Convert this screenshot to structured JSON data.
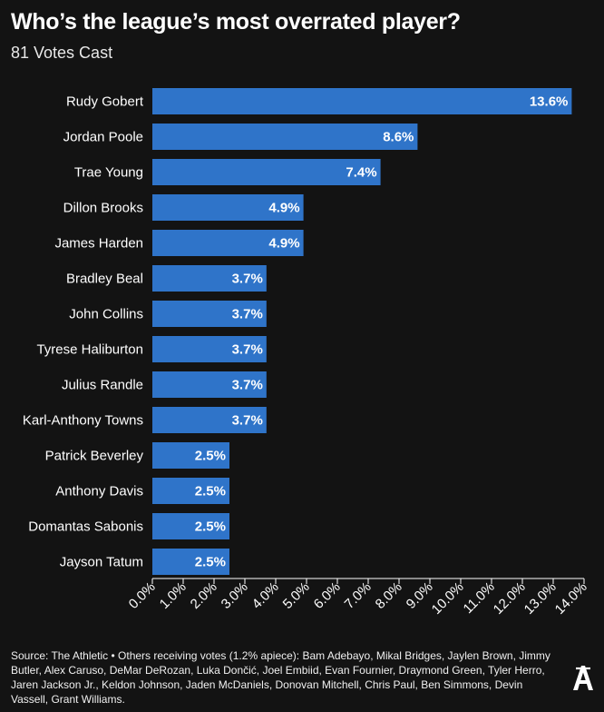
{
  "header": {
    "title": "Who’s the league’s most overrated player?",
    "subtitle": "81 Votes Cast"
  },
  "footer": {
    "text": "Source: The Athletic • Others receiving votes (1.2% apiece): Bam Adebayo, Mikal Bridges, Jaylen Brown, Jimmy Butler, Alex Caruso, DeMar DeRozan, Luka Dončić, Joel Embiid, Evan Fournier, Draymond Green, Tyler Herro, Jaren Jackson Jr., Keldon Johnson, Jaden McDaniels, Donovan Mitchell, Chris Paul, Ben Simmons, Devin Vassell, Grant Williams."
  },
  "logo": {
    "icon": "athletic-a-logo-icon"
  },
  "colors": {
    "background": "#131313",
    "bar": "#2f74c9",
    "axis": "#ffffff"
  },
  "chart_data": {
    "type": "bar",
    "orientation": "horizontal",
    "categories": [
      "Rudy Gobert",
      "Jordan Poole",
      "Trae Young",
      "Dillon Brooks",
      "James Harden",
      "Bradley Beal",
      "John Collins",
      "Tyrese Haliburton",
      "Julius Randle",
      "Karl-Anthony Towns",
      "Patrick Beverley",
      "Anthony Davis",
      "Domantas Sabonis",
      "Jayson Tatum"
    ],
    "values": [
      13.6,
      8.6,
      7.4,
      4.9,
      4.9,
      3.7,
      3.7,
      3.7,
      3.7,
      3.7,
      2.5,
      2.5,
      2.5,
      2.5
    ],
    "value_labels": [
      "13.6%",
      "8.6%",
      "7.4%",
      "4.9%",
      "4.9%",
      "3.7%",
      "3.7%",
      "3.7%",
      "3.7%",
      "3.7%",
      "2.5%",
      "2.5%",
      "2.5%",
      "2.5%"
    ],
    "xlim": [
      0,
      14
    ],
    "xticks": [
      0,
      1,
      2,
      3,
      4,
      5,
      6,
      7,
      8,
      9,
      10,
      11,
      12,
      13,
      14
    ],
    "xtick_labels": [
      "0.0%",
      "1.0%",
      "2.0%",
      "3.0%",
      "4.0%",
      "5.0%",
      "6.0%",
      "7.0%",
      "8.0%",
      "9.0%",
      "10.0%",
      "11.0%",
      "12.0%",
      "13.0%",
      "14.0%"
    ],
    "grid": false,
    "legend": "none"
  }
}
